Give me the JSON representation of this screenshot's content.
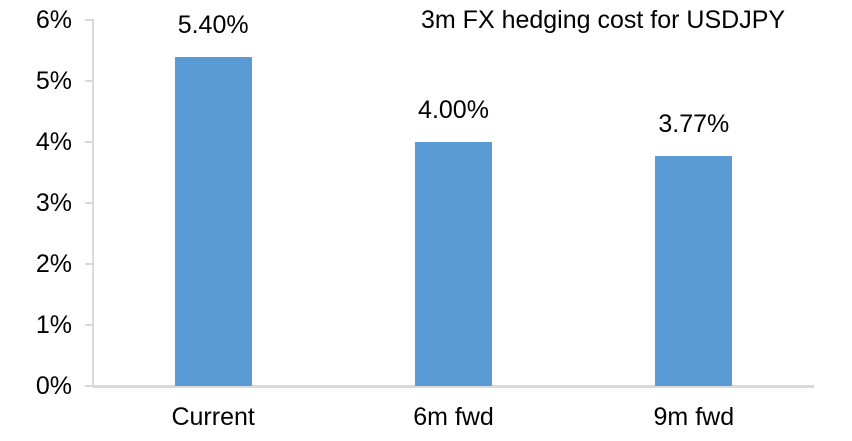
{
  "chart_data": {
    "type": "bar",
    "title": "3m FX hedging cost for USDJPY",
    "categories": [
      "Current",
      "6m fwd",
      "9m fwd"
    ],
    "values": [
      5.4,
      4.0,
      3.77
    ],
    "value_labels": [
      "5.40%",
      "4.00%",
      "3.77%"
    ],
    "xlabel": "",
    "ylabel": "",
    "ylim": [
      0,
      6
    ],
    "ytick_step": 1,
    "ytick_labels": [
      "0%",
      "1%",
      "2%",
      "3%",
      "4%",
      "5%",
      "6%"
    ],
    "grid": false,
    "legend_position": "none",
    "bar_color": "#5B9BD5",
    "axis_color": "#D9D9D9",
    "text_color": "#000000",
    "background_color": "#FFFFFF"
  }
}
